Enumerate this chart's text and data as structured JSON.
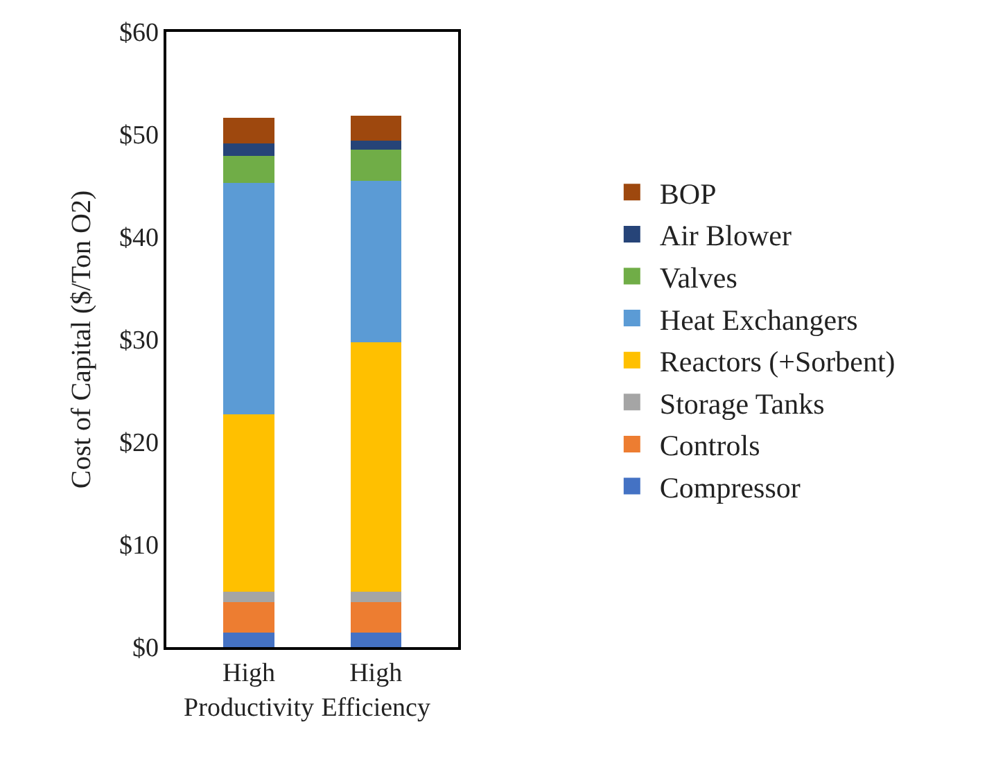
{
  "chart_data": {
    "type": "bar",
    "stacked": true,
    "ylabel": "Cost of Capital ($/Ton O2)",
    "categories": [
      "High Productivity",
      "High Efficiency"
    ],
    "series": [
      {
        "name": "Compressor",
        "color": "#4472c4",
        "values": [
          1.4,
          1.4
        ]
      },
      {
        "name": "Controls",
        "color": "#ed7d31",
        "values": [
          3.0,
          3.0
        ]
      },
      {
        "name": "Storage Tanks",
        "color": "#a5a5a5",
        "values": [
          1.0,
          1.0
        ]
      },
      {
        "name": "Reactors (+Sorbent)",
        "color": "#ffc000",
        "values": [
          17.3,
          24.3
        ]
      },
      {
        "name": "Heat Exchangers",
        "color": "#5b9bd5",
        "values": [
          22.6,
          15.8
        ]
      },
      {
        "name": "Valves",
        "color": "#70ad47",
        "values": [
          2.6,
          3.0
        ]
      },
      {
        "name": "Air Blower",
        "color": "#264478",
        "values": [
          1.2,
          0.9
        ]
      },
      {
        "name": "BOP",
        "color": "#9e480e",
        "values": [
          2.5,
          2.4
        ]
      }
    ],
    "ylim": [
      0,
      60
    ],
    "yticks": [
      {
        "value": 0,
        "label": "$0"
      },
      {
        "value": 10,
        "label": "$10"
      },
      {
        "value": 20,
        "label": "$20"
      },
      {
        "value": 30,
        "label": "$30"
      },
      {
        "value": 40,
        "label": "$40"
      },
      {
        "value": 50,
        "label": "$50"
      },
      {
        "value": 60,
        "label": "$60"
      }
    ],
    "legend": "right"
  }
}
